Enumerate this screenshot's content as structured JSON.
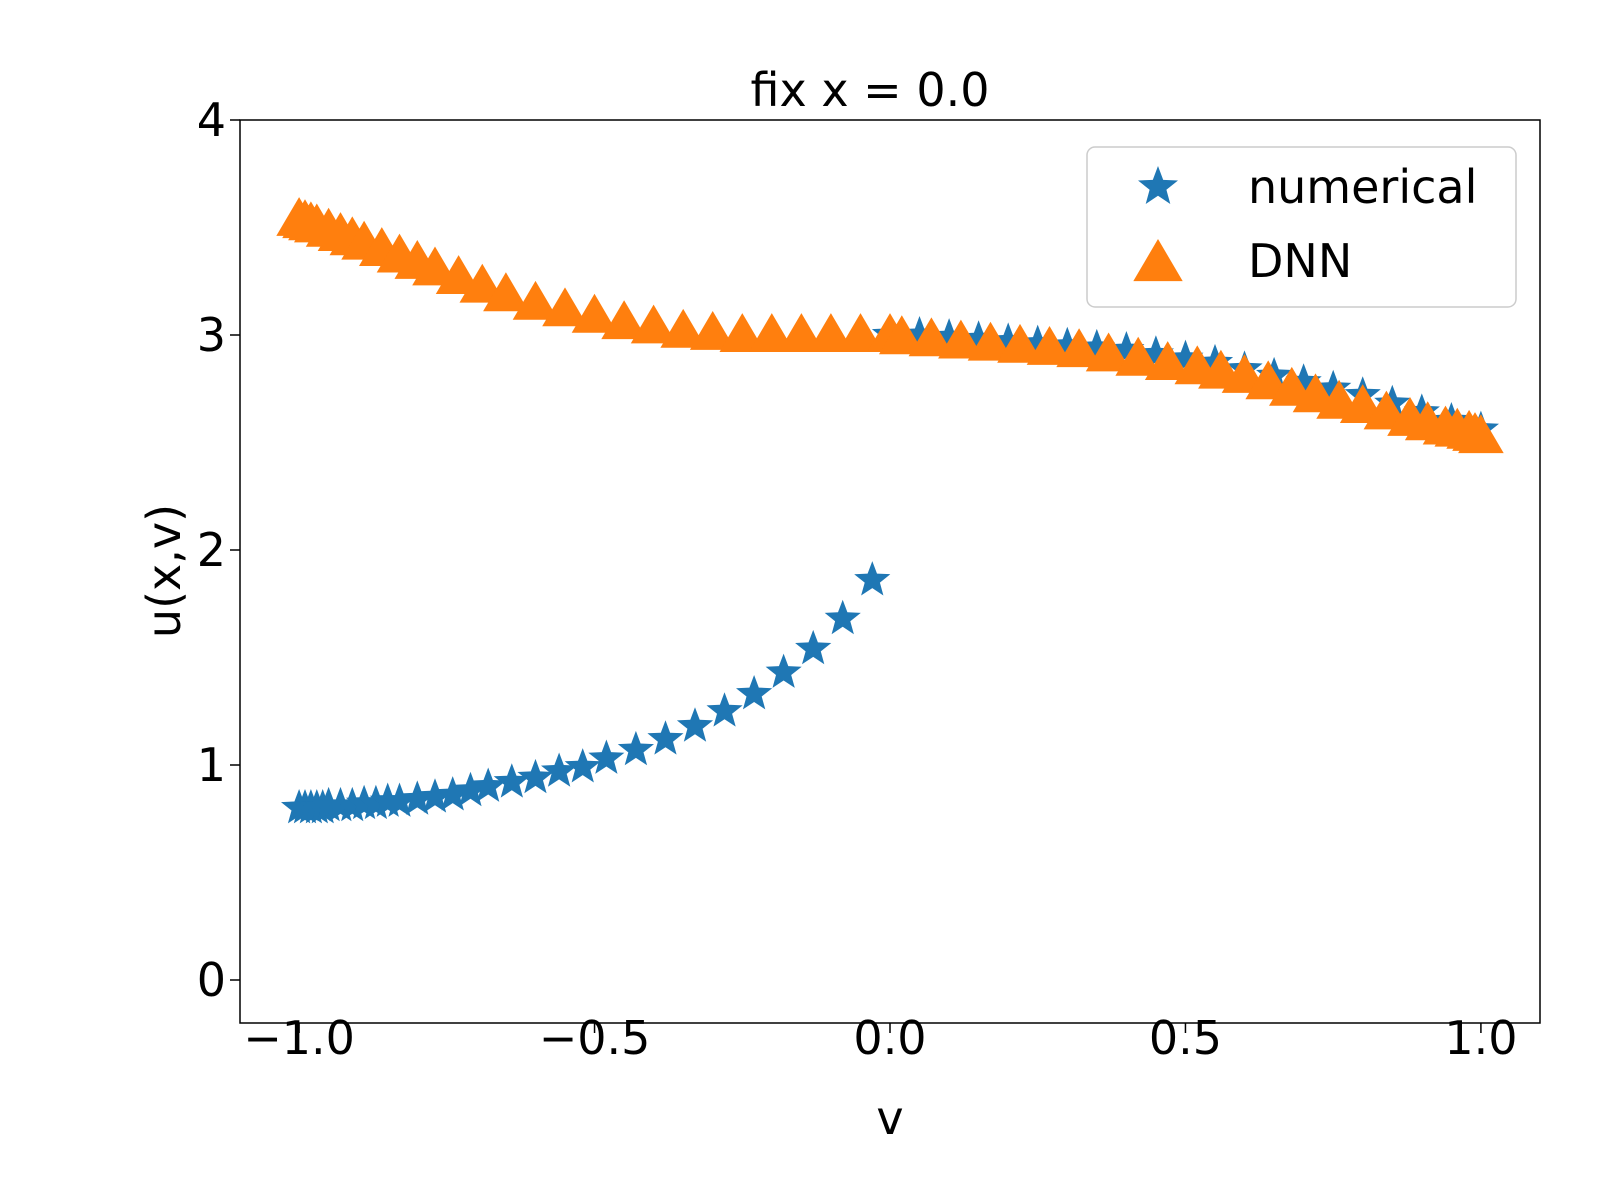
{
  "chart_data": {
    "type": "scatter",
    "title": "fix x = 0.0",
    "xlabel": "v",
    "ylabel": "u(x,v)",
    "xlim": [
      -1.1,
      1.1
    ],
    "ylim": [
      -0.2,
      4.0
    ],
    "xticks": [
      -1.0,
      -0.5,
      0.0,
      0.5,
      1.0
    ],
    "xtick_labels": [
      "−1.0",
      "−0.5",
      "0.0",
      "0.5",
      "1.0"
    ],
    "yticks": [
      0,
      1,
      2,
      3,
      4
    ],
    "ytick_labels": [
      "0",
      "1",
      "2",
      "3",
      "4"
    ],
    "grid": false,
    "legend_position": "top-right",
    "series": [
      {
        "name": "numerical",
        "marker": "star",
        "color": "#1f77b4",
        "x": [
          -1.0,
          -0.99,
          -0.98,
          -0.97,
          -0.96,
          -0.95,
          -0.93,
          -0.91,
          -0.89,
          -0.87,
          -0.85,
          -0.83,
          -0.8,
          -0.77,
          -0.74,
          -0.71,
          -0.68,
          -0.64,
          -0.6,
          -0.56,
          -0.52,
          -0.48,
          -0.43,
          -0.38,
          -0.33,
          -0.28,
          -0.23,
          -0.18,
          -0.13,
          -0.08,
          -0.03,
          0.0,
          0.05,
          0.1,
          0.15,
          0.2,
          0.25,
          0.3,
          0.35,
          0.4,
          0.45,
          0.5,
          0.55,
          0.6,
          0.65,
          0.7,
          0.75,
          0.8,
          0.85,
          0.9,
          0.95,
          1.0
        ],
        "y": [
          0.8,
          0.8,
          0.8,
          0.8,
          0.8,
          0.81,
          0.81,
          0.81,
          0.82,
          0.82,
          0.83,
          0.83,
          0.84,
          0.85,
          0.86,
          0.88,
          0.9,
          0.92,
          0.94,
          0.97,
          0.99,
          1.03,
          1.07,
          1.12,
          1.18,
          1.25,
          1.33,
          1.43,
          1.54,
          1.68,
          1.86,
          3.0,
          3.0,
          2.99,
          2.98,
          2.97,
          2.96,
          2.95,
          2.94,
          2.93,
          2.91,
          2.89,
          2.87,
          2.84,
          2.81,
          2.78,
          2.75,
          2.72,
          2.68,
          2.64,
          2.6,
          2.56
        ]
      },
      {
        "name": "DNN",
        "marker": "triangle",
        "color": "#ff7f0e",
        "x": [
          -1.0,
          -0.99,
          -0.98,
          -0.97,
          -0.95,
          -0.93,
          -0.91,
          -0.89,
          -0.86,
          -0.83,
          -0.8,
          -0.77,
          -0.73,
          -0.69,
          -0.65,
          -0.6,
          -0.55,
          -0.5,
          -0.45,
          -0.4,
          -0.35,
          -0.3,
          -0.25,
          -0.2,
          -0.15,
          -0.1,
          -0.05,
          0.0,
          0.02,
          0.07,
          0.12,
          0.17,
          0.22,
          0.27,
          0.32,
          0.37,
          0.42,
          0.47,
          0.52,
          0.56,
          0.6,
          0.64,
          0.68,
          0.72,
          0.76,
          0.8,
          0.84,
          0.88,
          0.91,
          0.94,
          0.96,
          0.98,
          0.99,
          1.0
        ],
        "y": [
          3.53,
          3.52,
          3.51,
          3.5,
          3.48,
          3.46,
          3.44,
          3.42,
          3.39,
          3.36,
          3.33,
          3.3,
          3.26,
          3.22,
          3.18,
          3.14,
          3.11,
          3.08,
          3.05,
          3.03,
          3.01,
          3.0,
          2.99,
          2.99,
          2.99,
          2.99,
          2.99,
          2.99,
          2.98,
          2.97,
          2.96,
          2.95,
          2.94,
          2.93,
          2.92,
          2.9,
          2.88,
          2.86,
          2.84,
          2.82,
          2.8,
          2.77,
          2.74,
          2.71,
          2.68,
          2.66,
          2.63,
          2.6,
          2.58,
          2.56,
          2.55,
          2.54,
          2.53,
          2.52
        ]
      }
    ]
  }
}
